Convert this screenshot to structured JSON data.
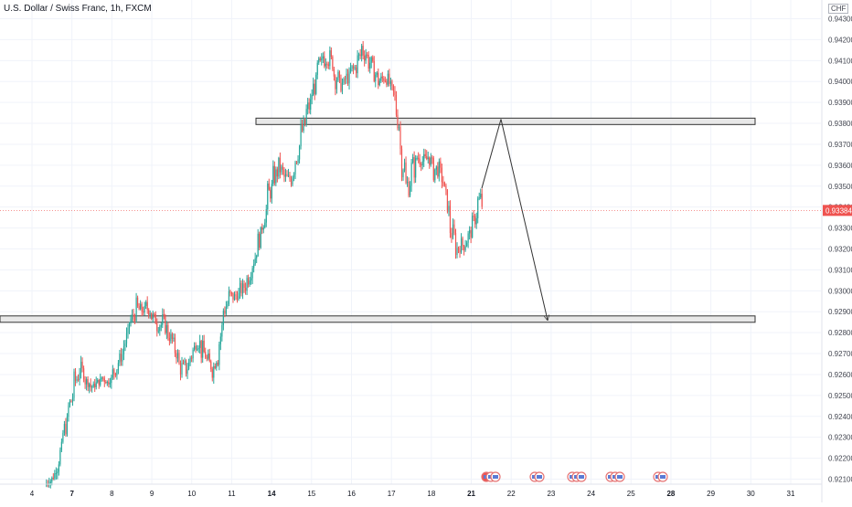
{
  "chart_data": {
    "type": "candlestick",
    "title": "U.S. Dollar / Swiss Franc, 1h, FXCM",
    "currency": "CHF",
    "last_price": "0.93384",
    "ylim": [
      0.9205,
      0.9436
    ],
    "y_ticks": [
      "0.94300",
      "0.94200",
      "0.94100",
      "0.94000",
      "0.93900",
      "0.93800",
      "0.93700",
      "0.93600",
      "0.93500",
      "0.93400",
      "0.93300",
      "0.93200",
      "0.93100",
      "0.93000",
      "0.92900",
      "0.92800",
      "0.92700",
      "0.92600",
      "0.92500",
      "0.92400",
      "0.92300",
      "0.92200",
      "0.92100"
    ],
    "x_ticks": [
      {
        "label": "4",
        "bold": false
      },
      {
        "label": "7",
        "bold": true
      },
      {
        "label": "8",
        "bold": false
      },
      {
        "label": "9",
        "bold": false
      },
      {
        "label": "10",
        "bold": false
      },
      {
        "label": "11",
        "bold": false
      },
      {
        "label": "14",
        "bold": true
      },
      {
        "label": "15",
        "bold": false
      },
      {
        "label": "16",
        "bold": false
      },
      {
        "label": "17",
        "bold": false
      },
      {
        "label": "18",
        "bold": false
      },
      {
        "label": "21",
        "bold": true
      },
      {
        "label": "22",
        "bold": false
      },
      {
        "label": "23",
        "bold": false
      },
      {
        "label": "24",
        "bold": false
      },
      {
        "label": "25",
        "bold": false
      },
      {
        "label": "28",
        "bold": true
      },
      {
        "label": "29",
        "bold": false
      },
      {
        "label": "30",
        "bold": false
      },
      {
        "label": "31",
        "bold": false
      }
    ],
    "price_path": [
      [
        0.9209,
        0.9207
      ],
      [
        0.9212,
        0.9208
      ],
      [
        0.9225,
        0.9212
      ],
      [
        0.9238,
        0.9225
      ],
      [
        0.925,
        0.9238
      ],
      [
        0.9262,
        0.925
      ],
      [
        0.9268,
        0.9258
      ],
      [
        0.926,
        0.9254
      ],
      [
        0.9256,
        0.9252
      ],
      [
        0.9258,
        0.9253
      ],
      [
        0.9262,
        0.9255
      ],
      [
        0.9258,
        0.9254
      ],
      [
        0.9265,
        0.9256
      ],
      [
        0.927,
        0.9262
      ],
      [
        0.928,
        0.9268
      ],
      [
        0.929,
        0.928
      ],
      [
        0.9298,
        0.9285
      ],
      [
        0.9294,
        0.9287
      ],
      [
        0.9296,
        0.9288
      ],
      [
        0.9292,
        0.9284
      ],
      [
        0.9286,
        0.928
      ],
      [
        0.929,
        0.9279
      ],
      [
        0.9284,
        0.9275
      ],
      [
        0.9278,
        0.9268
      ],
      [
        0.927,
        0.9258
      ],
      [
        0.9268,
        0.9256
      ],
      [
        0.9275,
        0.9262
      ],
      [
        0.9283,
        0.9272
      ],
      [
        0.9278,
        0.9266
      ],
      [
        0.9272,
        0.926
      ],
      [
        0.9266,
        0.9258
      ],
      [
        0.9285,
        0.9262
      ],
      [
        0.9298,
        0.9284
      ],
      [
        0.9302,
        0.9292
      ],
      [
        0.93,
        0.9294
      ],
      [
        0.9304,
        0.9296
      ],
      [
        0.931,
        0.9298
      ],
      [
        0.9318,
        0.9306
      ],
      [
        0.9328,
        0.9315
      ],
      [
        0.934,
        0.9326
      ],
      [
        0.9352,
        0.9338
      ],
      [
        0.936,
        0.9348
      ],
      [
        0.9364,
        0.9354
      ],
      [
        0.9358,
        0.935
      ],
      [
        0.9362,
        0.9346
      ],
      [
        0.9372,
        0.9356
      ],
      [
        0.9382,
        0.9368
      ],
      [
        0.9392,
        0.9378
      ],
      [
        0.9402,
        0.9388
      ],
      [
        0.9412,
        0.9398
      ],
      [
        0.942,
        0.9405
      ],
      [
        0.9418,
        0.9406
      ],
      [
        0.9412,
        0.9396
      ],
      [
        0.9402,
        0.9394
      ],
      [
        0.9406,
        0.9396
      ],
      [
        0.941,
        0.9398
      ],
      [
        0.9416,
        0.9402
      ],
      [
        0.9424,
        0.9408
      ],
      [
        0.9418,
        0.9404
      ],
      [
        0.941,
        0.94
      ],
      [
        0.9404,
        0.9396
      ],
      [
        0.9408,
        0.9398
      ],
      [
        0.9402,
        0.9396
      ],
      [
        0.94,
        0.938
      ],
      [
        0.938,
        0.9355
      ],
      [
        0.9358,
        0.934
      ],
      [
        0.9366,
        0.9348
      ],
      [
        0.937,
        0.9358
      ],
      [
        0.9366,
        0.9358
      ],
      [
        0.9368,
        0.936
      ],
      [
        0.9364,
        0.9352
      ],
      [
        0.9362,
        0.9352
      ],
      [
        0.9352,
        0.934
      ],
      [
        0.9338,
        0.9322
      ],
      [
        0.9324,
        0.9316
      ],
      [
        0.9326,
        0.9316
      ],
      [
        0.933,
        0.932
      ],
      [
        0.9336,
        0.9326
      ],
      [
        0.935,
        0.9334
      ]
    ],
    "resistance_zone": [
      0.93795,
      0.93825
    ],
    "support_zone": [
      0.9285,
      0.9288
    ],
    "projection_path": [
      [
        0.9349
      ],
      [
        0.9382
      ],
      [
        0.9286
      ]
    ],
    "colors": {
      "up": "#26a69a",
      "down": "#ef5350",
      "last_price": "#ef5350",
      "zone_fill": "#e8e8e8",
      "zone_stroke": "#333333",
      "arrow": "#333333"
    }
  }
}
